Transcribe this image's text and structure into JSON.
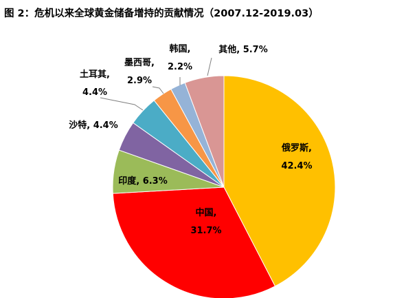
{
  "chart_data": {
    "type": "pie",
    "title": "图 2：危机以来全球黄金储备增持的贡献情况（2007.12-2019.03）",
    "categories": [
      "俄罗斯",
      "中国",
      "印度",
      "沙特",
      "土耳其",
      "墨西哥",
      "韩国",
      "其他"
    ],
    "values": [
      42.4,
      31.7,
      6.3,
      4.4,
      4.4,
      2.9,
      2.2,
      5.7
    ],
    "value_labels": [
      "42.4%",
      "31.7%",
      "6.3%",
      "4.4%",
      "4.4%",
      "2.9%",
      "2.2%",
      "5.7%"
    ],
    "label_separator": ", ",
    "colors": [
      "#FFC000",
      "#FF0000",
      "#9BBB59",
      "#8064A2",
      "#4BACC6",
      "#F79646",
      "#95B3D7",
      "#D99694"
    ]
  }
}
